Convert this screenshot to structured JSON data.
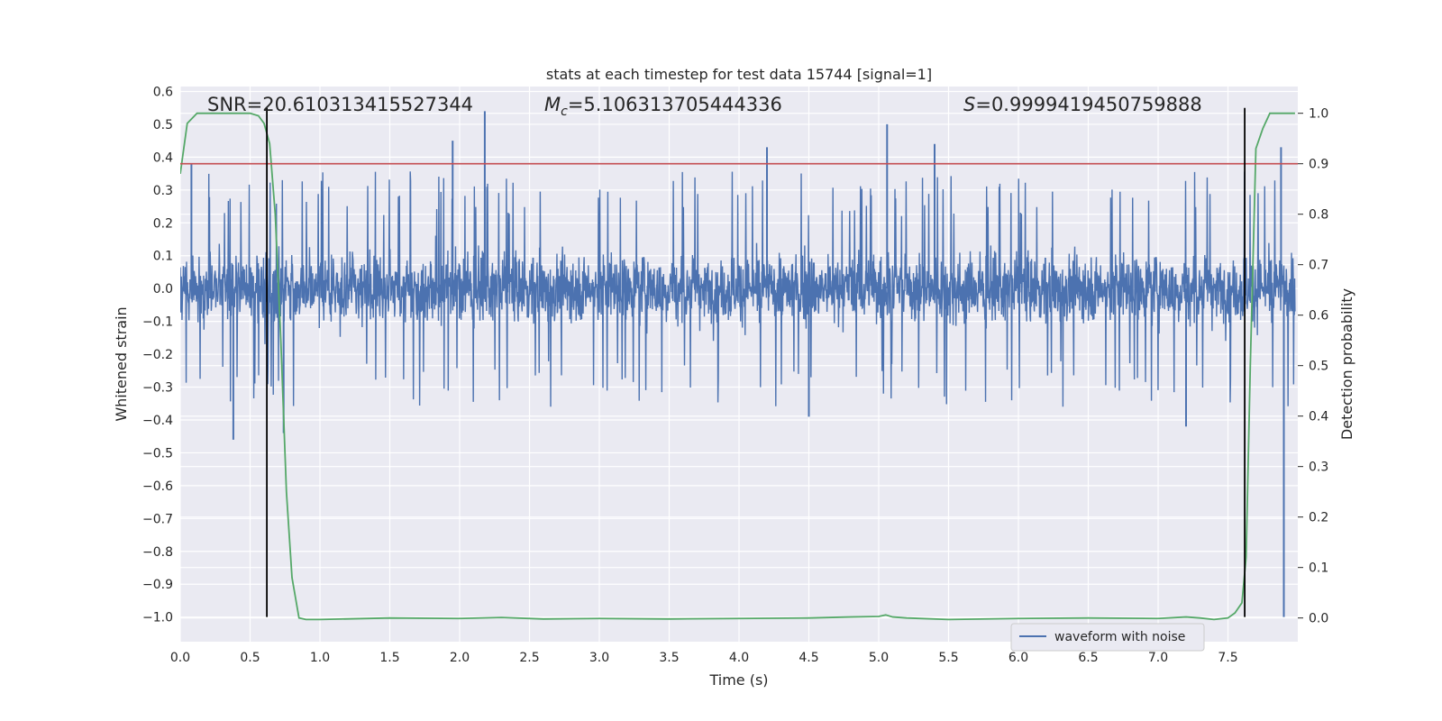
{
  "chart_data": {
    "type": "line",
    "title": "stats at each timestep for test data 15744 [signal=1]",
    "xlabel": "Time (s)",
    "ylabel": "Whitened strain",
    "y2label": "Detection probability",
    "xlim": [
      0.0,
      8.0
    ],
    "ylim": [
      -1.075,
      0.615
    ],
    "y2lim": [
      -0.047,
      1.053
    ],
    "xticks": [
      "0.0",
      "0.5",
      "1.0",
      "1.5",
      "2.0",
      "2.5",
      "3.0",
      "3.5",
      "4.0",
      "4.5",
      "5.0",
      "5.5",
      "6.0",
      "6.5",
      "7.0",
      "7.5"
    ],
    "yticks": [
      "0.6",
      "0.5",
      "0.4",
      "0.3",
      "0.2",
      "0.1",
      "0.0",
      "−0.1",
      "−0.2",
      "−0.3",
      "−0.4",
      "−0.5",
      "−0.6",
      "−0.7",
      "−0.8",
      "−0.9",
      "−1.0"
    ],
    "y2ticks": [
      "1.0",
      "0.9",
      "0.8",
      "0.7",
      "0.6",
      "0.5",
      "0.4",
      "0.3",
      "0.2",
      "0.1",
      "0.0"
    ],
    "grid": true,
    "legend_position": "lower-right",
    "annotations": {
      "snr": "SNR=20.610313415527344",
      "mc_symbol": "M",
      "mc_sub": "c",
      "mc_value": "=5.106313705444336",
      "s_symbol": "S",
      "s_value": "=0.9999419450759888"
    },
    "series": [
      {
        "name": "waveform with noise",
        "axis": "left",
        "color": "#4c72b0",
        "style": "dense-noise",
        "envelope_typical": [
          -0.26,
          0.24
        ],
        "notable_spikes": [
          {
            "x": 0.08,
            "y": 0.38
          },
          {
            "x": 0.38,
            "y": -0.46
          },
          {
            "x": 0.74,
            "y": -0.44
          },
          {
            "x": 1.95,
            "y": 0.45
          },
          {
            "x": 2.18,
            "y": 0.54
          },
          {
            "x": 4.2,
            "y": 0.43
          },
          {
            "x": 4.5,
            "y": -0.39
          },
          {
            "x": 5.06,
            "y": 0.5
          },
          {
            "x": 5.4,
            "y": 0.44
          },
          {
            "x": 7.2,
            "y": -0.42
          },
          {
            "x": 7.88,
            "y": 0.43
          },
          {
            "x": 7.9,
            "y": -1.0
          }
        ]
      },
      {
        "name": "",
        "axis": "right",
        "color": "#55a868",
        "x": [
          0.0,
          0.05,
          0.12,
          0.2,
          0.3,
          0.4,
          0.5,
          0.56,
          0.6,
          0.64,
          0.68,
          0.72,
          0.76,
          0.8,
          0.85,
          0.9,
          1.0,
          1.5,
          2.0,
          2.3,
          2.6,
          3.0,
          3.5,
          4.0,
          4.5,
          4.8,
          5.0,
          5.05,
          5.1,
          5.2,
          5.5,
          6.0,
          6.5,
          7.0,
          7.2,
          7.3,
          7.4,
          7.5,
          7.55,
          7.6,
          7.63,
          7.66,
          7.7,
          7.75,
          7.8,
          7.9,
          7.98
        ],
        "values": [
          0.88,
          0.98,
          1.0,
          1.0,
          1.0,
          1.0,
          1.0,
          0.995,
          0.98,
          0.94,
          0.8,
          0.55,
          0.25,
          0.08,
          0.0,
          -0.003,
          -0.003,
          0.0,
          -0.001,
          0.001,
          -0.002,
          -0.001,
          -0.002,
          -0.001,
          0.0,
          0.002,
          0.003,
          0.006,
          0.002,
          0.0,
          -0.003,
          -0.001,
          0.0,
          -0.001,
          0.002,
          0.0,
          -0.003,
          0.0,
          0.01,
          0.03,
          0.12,
          0.5,
          0.93,
          0.97,
          1.0,
          1.0,
          1.0
        ]
      }
    ],
    "hlines": [
      {
        "axis": "right",
        "value": 0.9,
        "color": "#c44e52"
      }
    ],
    "vlines": [
      {
        "x": 0.62,
        "color": "#000000",
        "y_from": -1.0,
        "y_to": 0.55
      },
      {
        "x": 7.62,
        "color": "#000000",
        "y_from": -1.0,
        "y_to": 0.55
      }
    ],
    "colors": {
      "plot_bg": "#eaeaf2",
      "grid": "#ffffff",
      "text": "#262626"
    }
  }
}
